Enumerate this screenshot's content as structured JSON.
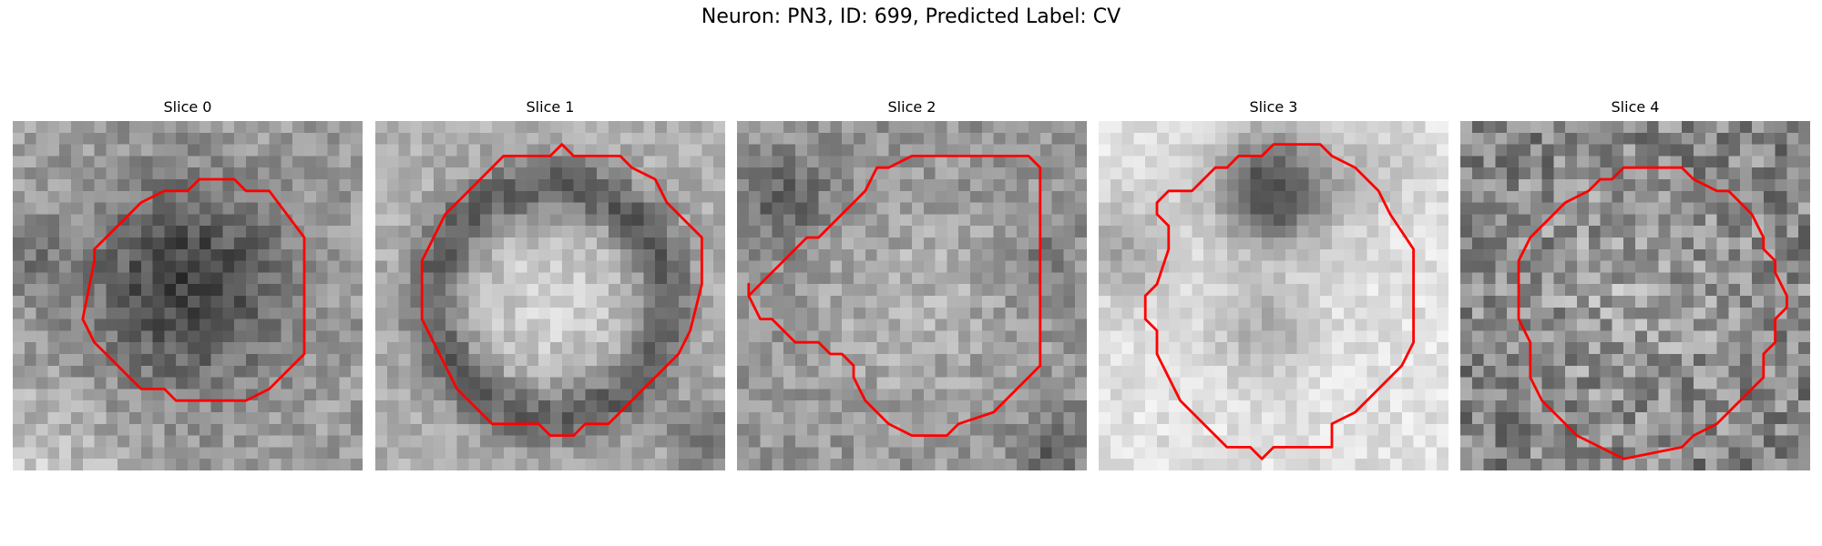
{
  "figure_title": "Neuron: PN3, ID: 699, Predicted Label: CV",
  "contour_color": "#ff0000",
  "colormap": "grayscale",
  "panels": [
    {
      "title": "Slice 0"
    },
    {
      "title": "Slice 1"
    },
    {
      "title": "Slice 2"
    },
    {
      "title": "Slice 3"
    },
    {
      "title": "Slice 4"
    }
  ]
}
